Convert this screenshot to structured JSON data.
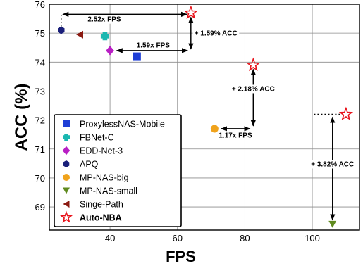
{
  "chart_data": {
    "type": "scatter",
    "xlabel": "FPS",
    "ylabel": "ACC (%)",
    "xlim": [
      22,
      114
    ],
    "ylim": [
      68.2,
      76
    ],
    "xticks": [
      "40",
      "60",
      "80",
      "100"
    ],
    "yticks": [
      "69",
      "70",
      "71",
      "72",
      "73",
      "74",
      "75",
      "76"
    ],
    "grid": true,
    "legend_position": "lower-left",
    "series": [
      {
        "name": "ProxylessNAS-Mobile",
        "marker": "square",
        "color": "#1f3fd6",
        "x": 48,
        "y": 74.2
      },
      {
        "name": "FBNet-C",
        "marker": "plus",
        "color": "#1ab7b0",
        "x": 38.5,
        "y": 74.9
      },
      {
        "name": "EDD-Net-3",
        "marker": "diamond",
        "color": "#b81fc4",
        "x": 40,
        "y": 74.4
      },
      {
        "name": "APQ",
        "marker": "hexagon",
        "color": "#1a1f7a",
        "x": 25.5,
        "y": 75.1
      },
      {
        "name": "MP-NAS-big",
        "marker": "circle",
        "color": "#f0a31c",
        "x": 71,
        "y": 71.7
      },
      {
        "name": "MP-NAS-small",
        "marker": "triangle-down",
        "color": "#5f8a1e",
        "x": 106,
        "y": 68.4
      },
      {
        "name": "Singe-Path",
        "marker": "triangle-left",
        "color": "#8b1a12",
        "x": 31,
        "y": 74.95
      },
      {
        "name": "Auto-NBA",
        "marker": "star-open",
        "color": "#e8141c",
        "bold": true,
        "points": [
          {
            "x": 64,
            "y": 75.7
          },
          {
            "x": 82.5,
            "y": 73.9
          },
          {
            "x": 110,
            "y": 72.2
          }
        ]
      }
    ],
    "annotations": [
      {
        "text": "2.52x FPS"
      },
      {
        "text": "+ 1.59% ACC"
      },
      {
        "text": "1.59x FPS"
      },
      {
        "text": "+ 2.18% ACC"
      },
      {
        "text": "1.17x FPS"
      },
      {
        "text": "+ 3.82% ACC"
      }
    ]
  }
}
